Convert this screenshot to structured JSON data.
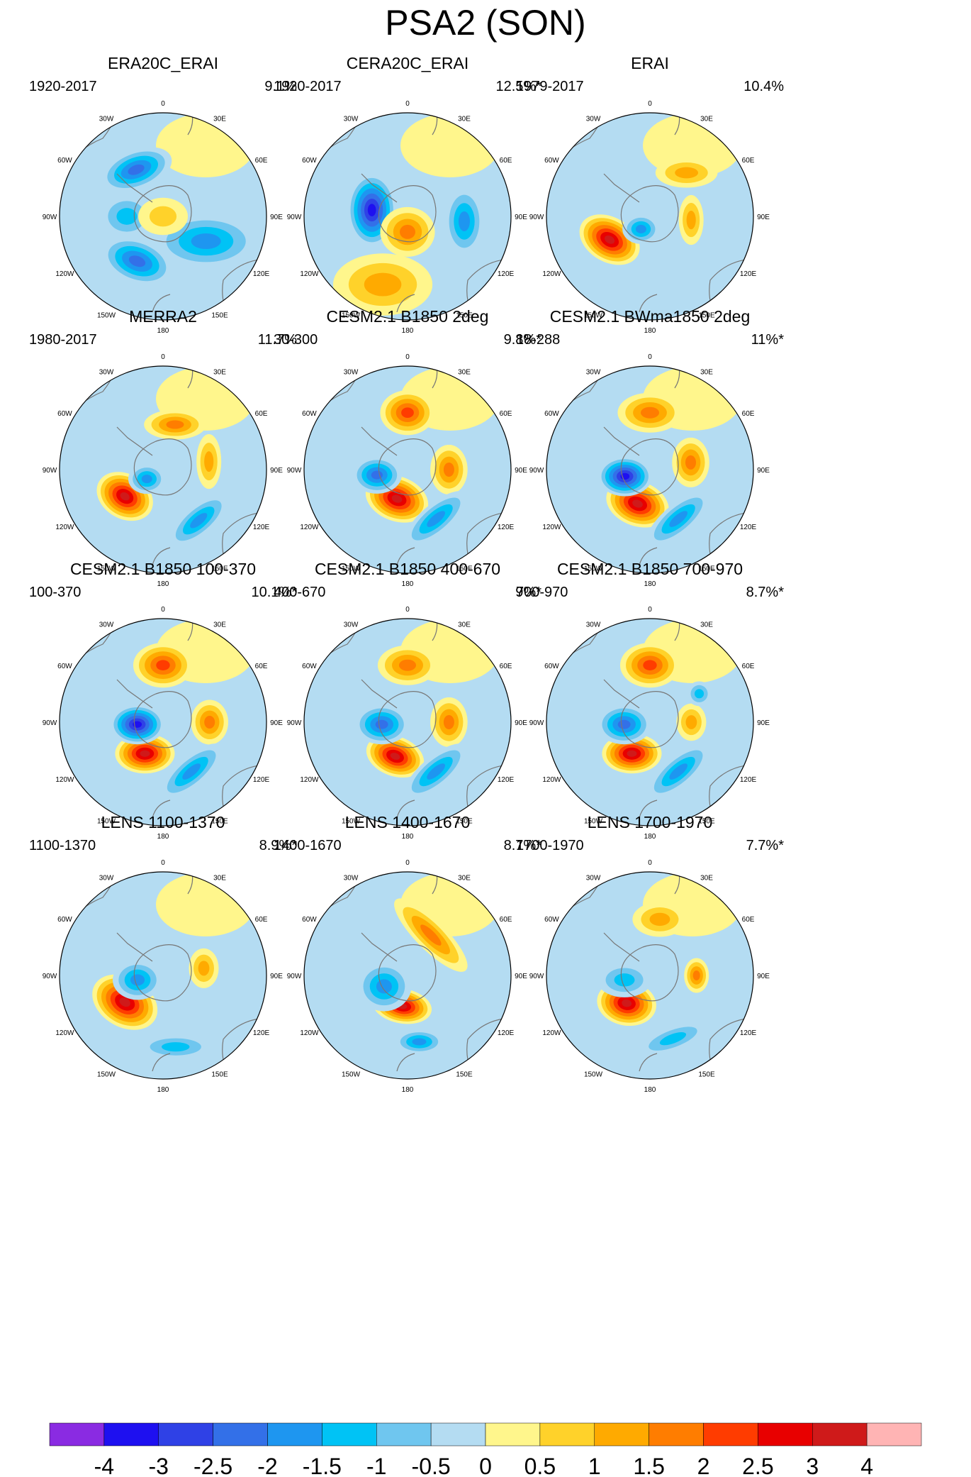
{
  "title": "PSA2 (SON)",
  "chart_data": {
    "type": "contour-map",
    "projection": "south polar stereographic",
    "lon_labels": [
      "0",
      "30E",
      "60E",
      "90E",
      "120E",
      "150E",
      "180",
      "150W",
      "120W",
      "90W",
      "60W",
      "30W"
    ],
    "panels": [
      {
        "title": "ERA20C_ERAI",
        "period": "1920-2017",
        "variance": "9.1%",
        "features": [
          {
            "lon": 120,
            "r": 0.48,
            "value": -1.5,
            "sx": 0.42,
            "sy": 0.22,
            "rot": 0
          },
          {
            "lon": 210,
            "r": 0.5,
            "value": -2,
            "sx": 0.3,
            "sy": 0.18,
            "rot": 20
          },
          {
            "lon": 330,
            "r": 0.52,
            "value": -2,
            "sx": 0.3,
            "sy": 0.16,
            "rot": -20
          },
          {
            "lon": 270,
            "r": 0.35,
            "value": -1,
            "sx": 0.22,
            "sy": 0.18,
            "rot": 0
          },
          {
            "lon": 0,
            "r": 0.0,
            "value": 0.5,
            "sx": 0.2,
            "sy": 0.15,
            "rot": 0
          }
        ]
      },
      {
        "title": "CERA20C_ERAI",
        "period": "1920-2017",
        "variance": "12.5%*",
        "features": [
          {
            "lon": 280,
            "r": 0.35,
            "value": -3,
            "sx": 0.2,
            "sy": 0.3,
            "rot": 0
          },
          {
            "lon": 180,
            "r": 0.15,
            "value": 1.5,
            "sx": 0.22,
            "sy": 0.2,
            "rot": 0
          },
          {
            "lon": 95,
            "r": 0.55,
            "value": -1.5,
            "sx": 0.16,
            "sy": 0.28,
            "rot": 0
          },
          {
            "lon": 200,
            "r": 0.7,
            "value": 1,
            "sx": 0.4,
            "sy": 0.25,
            "rot": 0
          }
        ]
      },
      {
        "title": "ERAI",
        "period": "1979-2017",
        "variance": "10.4%",
        "features": [
          {
            "lon": 240,
            "r": 0.45,
            "value": 3,
            "sx": 0.26,
            "sy": 0.18,
            "rot": 30
          },
          {
            "lon": 215,
            "r": 0.15,
            "value": -1.5,
            "sx": 0.15,
            "sy": 0.12,
            "rot": 0
          },
          {
            "lon": 40,
            "r": 0.55,
            "value": 1,
            "sx": 0.25,
            "sy": 0.12,
            "rot": 0
          },
          {
            "lon": 95,
            "r": 0.4,
            "value": 1,
            "sx": 0.1,
            "sy": 0.2,
            "rot": 0
          }
        ]
      },
      {
        "title": "MERRA2",
        "period": "1980-2017",
        "variance": "11.7%",
        "features": [
          {
            "lon": 235,
            "r": 0.45,
            "value": 3,
            "sx": 0.24,
            "sy": 0.18,
            "rot": 30
          },
          {
            "lon": 240,
            "r": 0.18,
            "value": -1.5,
            "sx": 0.15,
            "sy": 0.12,
            "rot": 0
          },
          {
            "lon": 15,
            "r": 0.45,
            "value": 1.5,
            "sx": 0.25,
            "sy": 0.12,
            "rot": 0
          },
          {
            "lon": 80,
            "r": 0.45,
            "value": 1,
            "sx": 0.1,
            "sy": 0.22,
            "rot": 0
          },
          {
            "lon": 145,
            "r": 0.6,
            "value": -1.5,
            "sx": 0.3,
            "sy": 0.12,
            "rot": -40
          }
        ]
      },
      {
        "title": "CESM2.1 B1850 2deg",
        "period": "30-300",
        "variance": "9.8%*",
        "features": [
          {
            "lon": 200,
            "r": 0.3,
            "value": 3,
            "sx": 0.26,
            "sy": 0.18,
            "rot": 20
          },
          {
            "lon": 260,
            "r": 0.3,
            "value": -2,
            "sx": 0.2,
            "sy": 0.15,
            "rot": 0
          },
          {
            "lon": 0,
            "r": 0.55,
            "value": 2,
            "sx": 0.22,
            "sy": 0.18,
            "rot": 0
          },
          {
            "lon": 90,
            "r": 0.4,
            "value": 1.5,
            "sx": 0.15,
            "sy": 0.2,
            "rot": 0
          },
          {
            "lon": 150,
            "r": 0.55,
            "value": -1.5,
            "sx": 0.32,
            "sy": 0.12,
            "rot": -40
          }
        ]
      },
      {
        "title": "CESM2.1 BWma1850 2deg",
        "period": "18-288",
        "variance": "11%*",
        "features": [
          {
            "lon": 200,
            "r": 0.35,
            "value": 3,
            "sx": 0.26,
            "sy": 0.18,
            "rot": 20
          },
          {
            "lon": 255,
            "r": 0.25,
            "value": -3,
            "sx": 0.22,
            "sy": 0.16,
            "rot": 0
          },
          {
            "lon": 0,
            "r": 0.55,
            "value": 1.5,
            "sx": 0.26,
            "sy": 0.16,
            "rot": 0
          },
          {
            "lon": 80,
            "r": 0.4,
            "value": 1.5,
            "sx": 0.15,
            "sy": 0.2,
            "rot": 0
          },
          {
            "lon": 150,
            "r": 0.55,
            "value": -1.5,
            "sx": 0.32,
            "sy": 0.12,
            "rot": -40
          }
        ]
      },
      {
        "title": "CESM2.1 B1850 100-370",
        "period": "100-370",
        "variance": "10.1%*",
        "features": [
          {
            "lon": 210,
            "r": 0.35,
            "value": 3,
            "sx": 0.24,
            "sy": 0.16,
            "rot": 0
          },
          {
            "lon": 265,
            "r": 0.25,
            "value": -3,
            "sx": 0.22,
            "sy": 0.16,
            "rot": 0
          },
          {
            "lon": 0,
            "r": 0.55,
            "value": 2,
            "sx": 0.24,
            "sy": 0.18,
            "rot": 0
          },
          {
            "lon": 90,
            "r": 0.45,
            "value": 1.5,
            "sx": 0.15,
            "sy": 0.18,
            "rot": 0
          },
          {
            "lon": 150,
            "r": 0.55,
            "value": -1.5,
            "sx": 0.32,
            "sy": 0.12,
            "rot": -40
          }
        ]
      },
      {
        "title": "CESM2.1 B1850 400-670",
        "period": "400-670",
        "variance": "9%*",
        "features": [
          {
            "lon": 200,
            "r": 0.35,
            "value": 3,
            "sx": 0.24,
            "sy": 0.16,
            "rot": 20
          },
          {
            "lon": 265,
            "r": 0.25,
            "value": -2,
            "sx": 0.22,
            "sy": 0.16,
            "rot": 0
          },
          {
            "lon": 0,
            "r": 0.55,
            "value": 1.5,
            "sx": 0.24,
            "sy": 0.16,
            "rot": 0
          },
          {
            "lon": 90,
            "r": 0.4,
            "value": 1.5,
            "sx": 0.15,
            "sy": 0.2,
            "rot": 0
          },
          {
            "lon": 150,
            "r": 0.55,
            "value": -1.5,
            "sx": 0.32,
            "sy": 0.12,
            "rot": -40
          }
        ]
      },
      {
        "title": "CESM2.1 B1850 700-970",
        "period": "700-970",
        "variance": "8.7%*",
        "features": [
          {
            "lon": 210,
            "r": 0.35,
            "value": 3,
            "sx": 0.24,
            "sy": 0.16,
            "rot": 0
          },
          {
            "lon": 265,
            "r": 0.25,
            "value": -2,
            "sx": 0.22,
            "sy": 0.16,
            "rot": 0
          },
          {
            "lon": 0,
            "r": 0.55,
            "value": 2,
            "sx": 0.24,
            "sy": 0.18,
            "rot": 0
          },
          {
            "lon": 90,
            "r": 0.4,
            "value": 1,
            "sx": 0.12,
            "sy": 0.15,
            "rot": 0
          },
          {
            "lon": 60,
            "r": 0.55,
            "value": -1,
            "sx": 0.1,
            "sy": 0.1,
            "rot": 0
          },
          {
            "lon": 150,
            "r": 0.55,
            "value": -1.5,
            "sx": 0.32,
            "sy": 0.12,
            "rot": -40
          }
        ]
      },
      {
        "title": "LENS 1100-1370",
        "period": "1100-1370",
        "variance": "8.9%*",
        "features": [
          {
            "lon": 235,
            "r": 0.45,
            "value": 3,
            "sx": 0.28,
            "sy": 0.2,
            "rot": 30
          },
          {
            "lon": 260,
            "r": 0.25,
            "value": -1.5,
            "sx": 0.2,
            "sy": 0.16,
            "rot": 0
          },
          {
            "lon": 80,
            "r": 0.4,
            "value": 1,
            "sx": 0.12,
            "sy": 0.16,
            "rot": 0
          },
          {
            "lon": 170,
            "r": 0.7,
            "value": -1,
            "sx": 0.3,
            "sy": 0.1,
            "rot": 0
          }
        ]
      },
      {
        "title": "LENS 1400-1670",
        "period": "1400-1670",
        "variance": "8.7%*",
        "features": [
          {
            "lon": 190,
            "r": 0.3,
            "value": 3,
            "sx": 0.24,
            "sy": 0.14,
            "rot": 10
          },
          {
            "lon": 245,
            "r": 0.25,
            "value": -1.5,
            "sx": 0.22,
            "sy": 0.2,
            "rot": 0
          },
          {
            "lon": 30,
            "r": 0.45,
            "value": 1.5,
            "sx": 0.4,
            "sy": 0.12,
            "rot": 45
          },
          {
            "lon": 170,
            "r": 0.65,
            "value": -1.5,
            "sx": 0.2,
            "sy": 0.1,
            "rot": 0
          }
        ]
      },
      {
        "title": "LENS 1700-1970",
        "period": "1700-1970",
        "variance": "7.7%*",
        "features": [
          {
            "lon": 220,
            "r": 0.35,
            "value": 3,
            "sx": 0.24,
            "sy": 0.18,
            "rot": 10
          },
          {
            "lon": 260,
            "r": 0.25,
            "value": -1,
            "sx": 0.22,
            "sy": 0.14,
            "rot": 0
          },
          {
            "lon": 10,
            "r": 0.55,
            "value": 1,
            "sx": 0.22,
            "sy": 0.14,
            "rot": 0
          },
          {
            "lon": 90,
            "r": 0.45,
            "value": 1.5,
            "sx": 0.1,
            "sy": 0.14,
            "rot": 0
          },
          {
            "lon": 160,
            "r": 0.65,
            "value": -1,
            "sx": 0.3,
            "sy": 0.1,
            "rot": -20
          }
        ]
      }
    ],
    "colorbar": {
      "tick_labels": [
        "-4",
        "-3",
        "-2.5",
        "-2",
        "-1.5",
        "-1",
        "-0.5",
        "0",
        "0.5",
        "1",
        "1.5",
        "2",
        "2.5",
        "3",
        "4"
      ],
      "colors": [
        "#8a2be2",
        "#1e10f0",
        "#2f41e6",
        "#3370e8",
        "#1e96f0",
        "#00c3f5",
        "#6fc6ef",
        "#b4dcf2",
        "#fff68c",
        "#ffd22a",
        "#ffaa00",
        "#ff7d00",
        "#ff3c00",
        "#e80000",
        "#cf1a1a",
        "#ffb4b4"
      ]
    }
  }
}
